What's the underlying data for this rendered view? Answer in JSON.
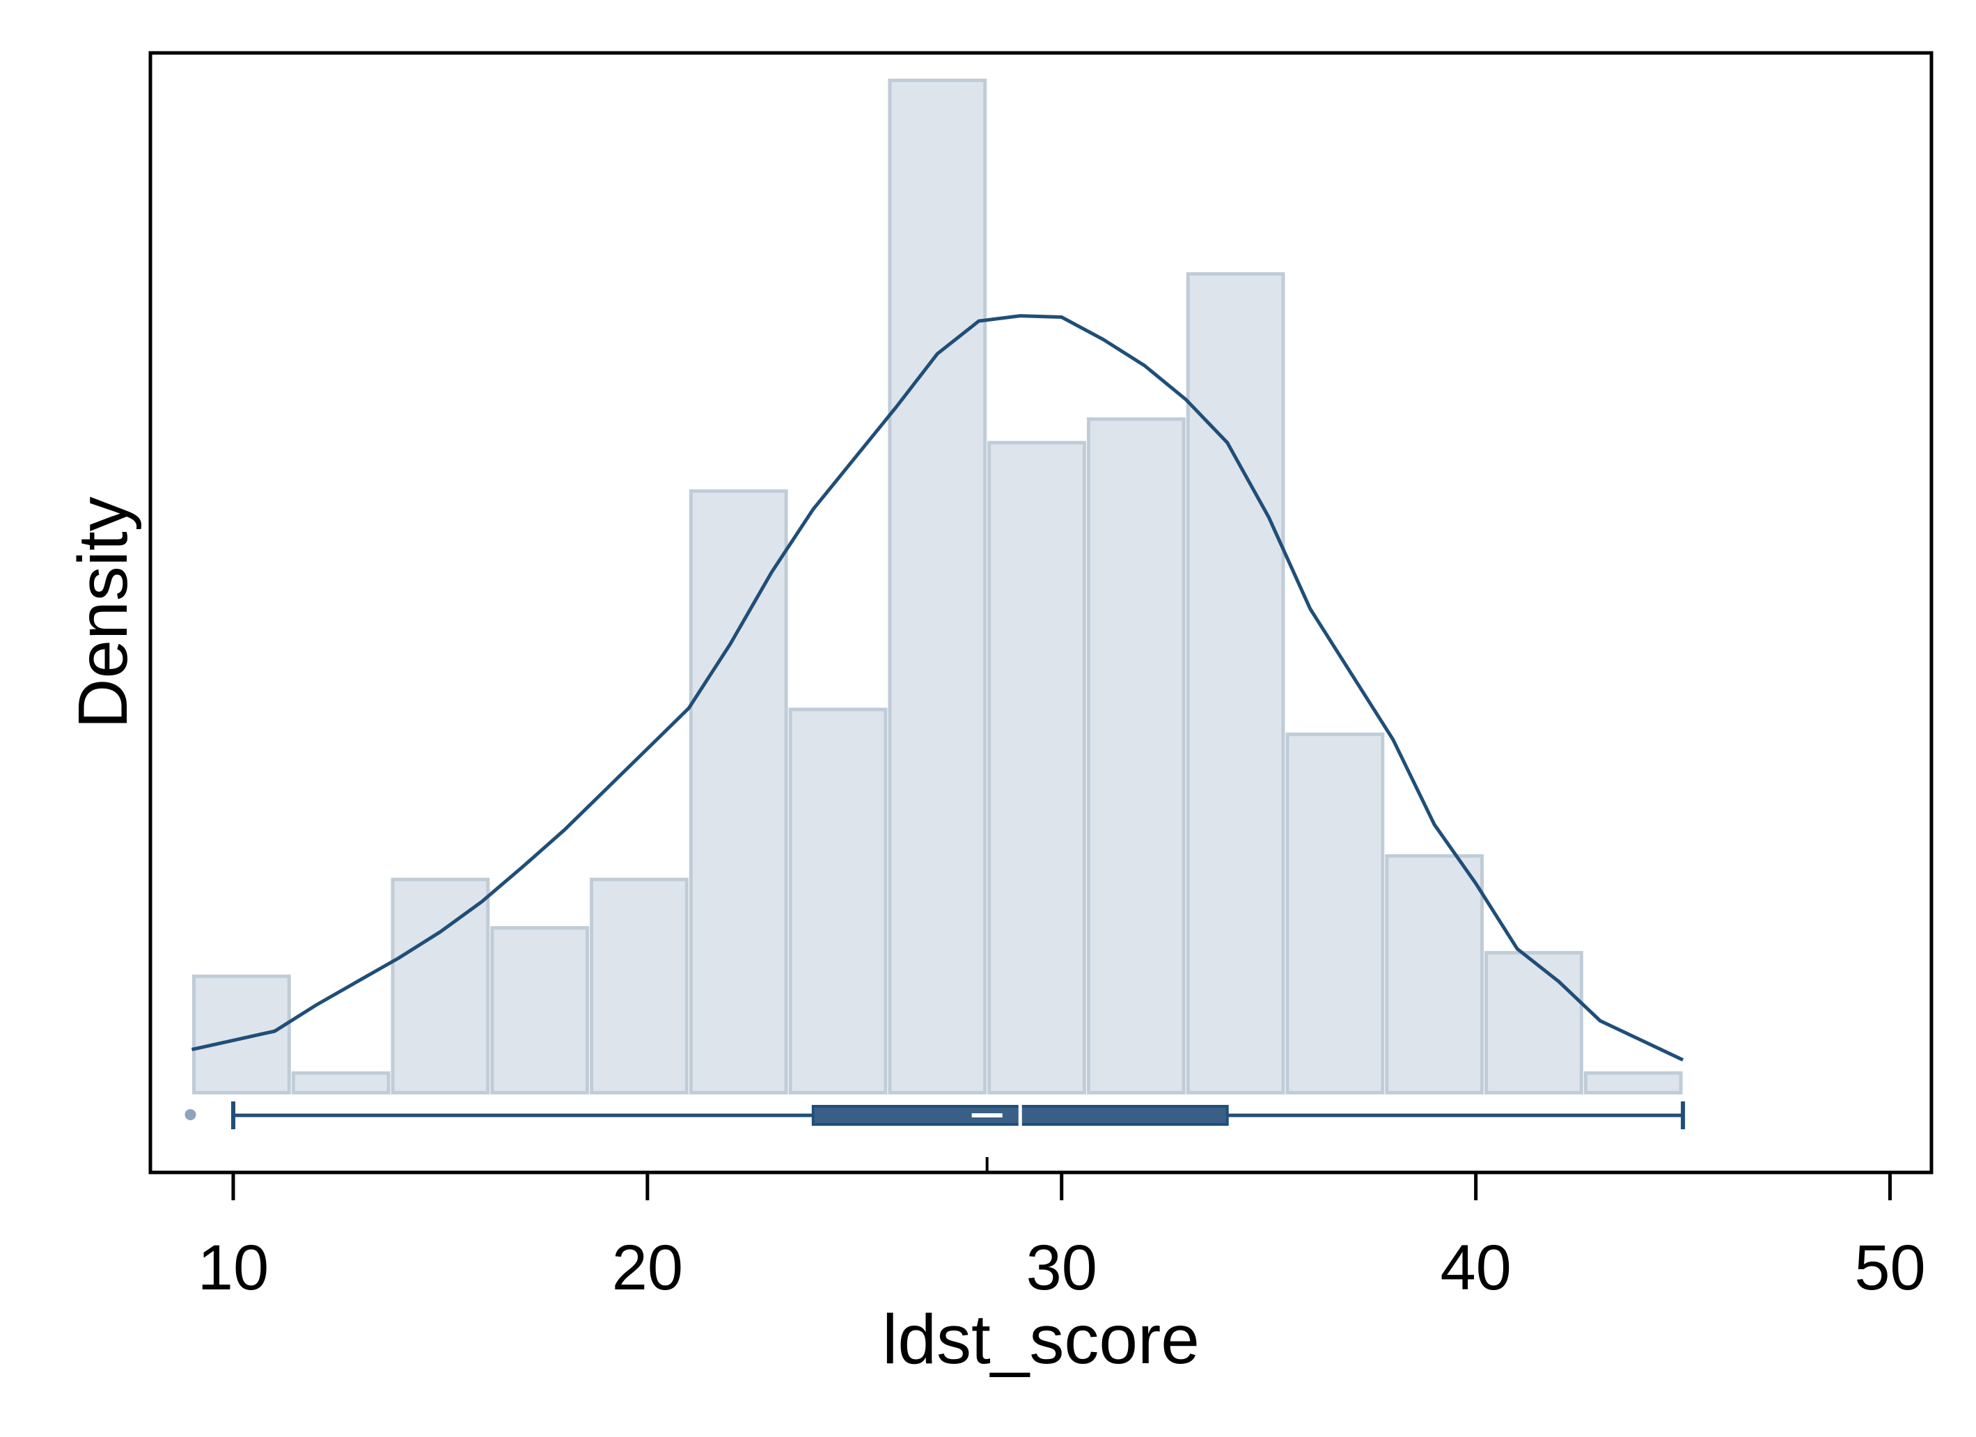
{
  "chart_data": {
    "type": "bar",
    "subtype": "histogram-with-kde-and-boxplot",
    "title": "",
    "xlabel": "ldst_score",
    "ylabel": "Density",
    "xlim": [
      8,
      51
    ],
    "x_ticks": [
      10,
      20,
      30,
      40,
      50
    ],
    "x_tick_labels": [
      "10",
      "20",
      "30",
      "40",
      "50"
    ],
    "ylim": [
      -0.0061,
      0.0795
    ],
    "y_ticks_shown": false,
    "histogram": {
      "bin_edges": [
        9.0,
        11.4,
        13.8,
        16.2,
        18.6,
        21.0,
        23.4,
        25.8,
        28.2,
        30.6,
        33.0,
        35.4,
        37.8,
        40.2,
        42.6,
        45.0
      ],
      "densities": [
        0.0089,
        0.0015,
        0.0163,
        0.0126,
        0.0163,
        0.046,
        0.0293,
        0.0774,
        0.0497,
        0.0515,
        0.0626,
        0.0274,
        0.0181,
        0.0107,
        0.0015
      ]
    },
    "kde": {
      "x": [
        9.0,
        10.0,
        11.0,
        12.0,
        13.0,
        14.0,
        15.0,
        16.0,
        17.0,
        18.0,
        19.0,
        20.0,
        21.0,
        22.0,
        23.0,
        24.0,
        25.0,
        26.0,
        27.0,
        28.0,
        29.0,
        30.0,
        31.0,
        32.0,
        33.0,
        34.0,
        35.0,
        36.0,
        37.0,
        38.0,
        39.0,
        40.0,
        41.0,
        42.0,
        43.0,
        44.0,
        45.0
      ],
      "density": [
        0.0033,
        0.004,
        0.0047,
        0.0067,
        0.0085,
        0.0103,
        0.0123,
        0.0146,
        0.0173,
        0.0201,
        0.0232,
        0.0263,
        0.0294,
        0.0343,
        0.0398,
        0.0446,
        0.0485,
        0.0524,
        0.0565,
        0.059,
        0.0594,
        0.0593,
        0.0576,
        0.0556,
        0.053,
        0.0497,
        0.044,
        0.037,
        0.032,
        0.027,
        0.0205,
        0.016,
        0.011,
        0.0085,
        0.0055,
        0.004,
        0.0025
      ]
    },
    "boxplot": {
      "whisker_low": 10,
      "q1": 24,
      "median": 28.2,
      "mean": 29.0,
      "q3": 34,
      "whisker_high": 45,
      "outliers": [
        9
      ]
    },
    "colors": {
      "bar_fill": "#dde4eb",
      "bar_edge": "#c0ccd7",
      "line": "#1f4e79",
      "box_fill": "#3a5f87",
      "box_edge": "#1f4e79",
      "marker_white": "#ffffff",
      "outlier": "#8da4bc"
    }
  }
}
